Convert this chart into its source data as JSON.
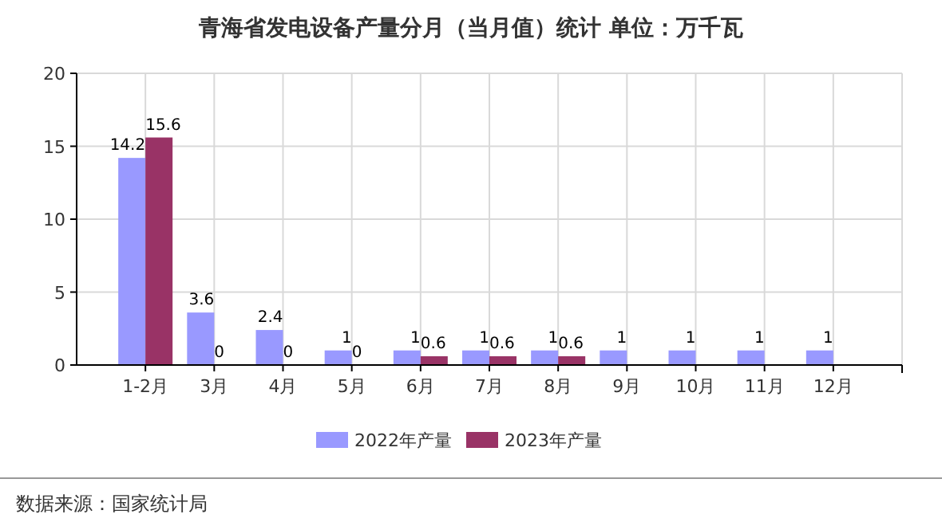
{
  "chart_data": {
    "type": "bar",
    "title": "青海省发电设备产量分月（当月值）统计  单位：万千瓦",
    "categories": [
      "1-2月",
      "3月",
      "4月",
      "5月",
      "6月",
      "7月",
      "8月",
      "9月",
      "10月",
      "11月",
      "12月"
    ],
    "series": [
      {
        "name": "2022年产量",
        "color": "#9999ff",
        "values": [
          14.2,
          3.6,
          2.4,
          1,
          1,
          1,
          1,
          1,
          1,
          1,
          1
        ]
      },
      {
        "name": "2023年产量",
        "color": "#993366",
        "values": [
          15.6,
          0,
          0,
          0,
          0.6,
          0.6,
          0.6,
          null,
          null,
          null,
          null
        ]
      }
    ],
    "ylim": [
      0,
      20
    ],
    "yticks": [
      0,
      5,
      10,
      15,
      20
    ],
    "grid": true,
    "legend": "bottom",
    "data_labels": true,
    "annotations": [
      "数据来源：国家统计局"
    ]
  }
}
